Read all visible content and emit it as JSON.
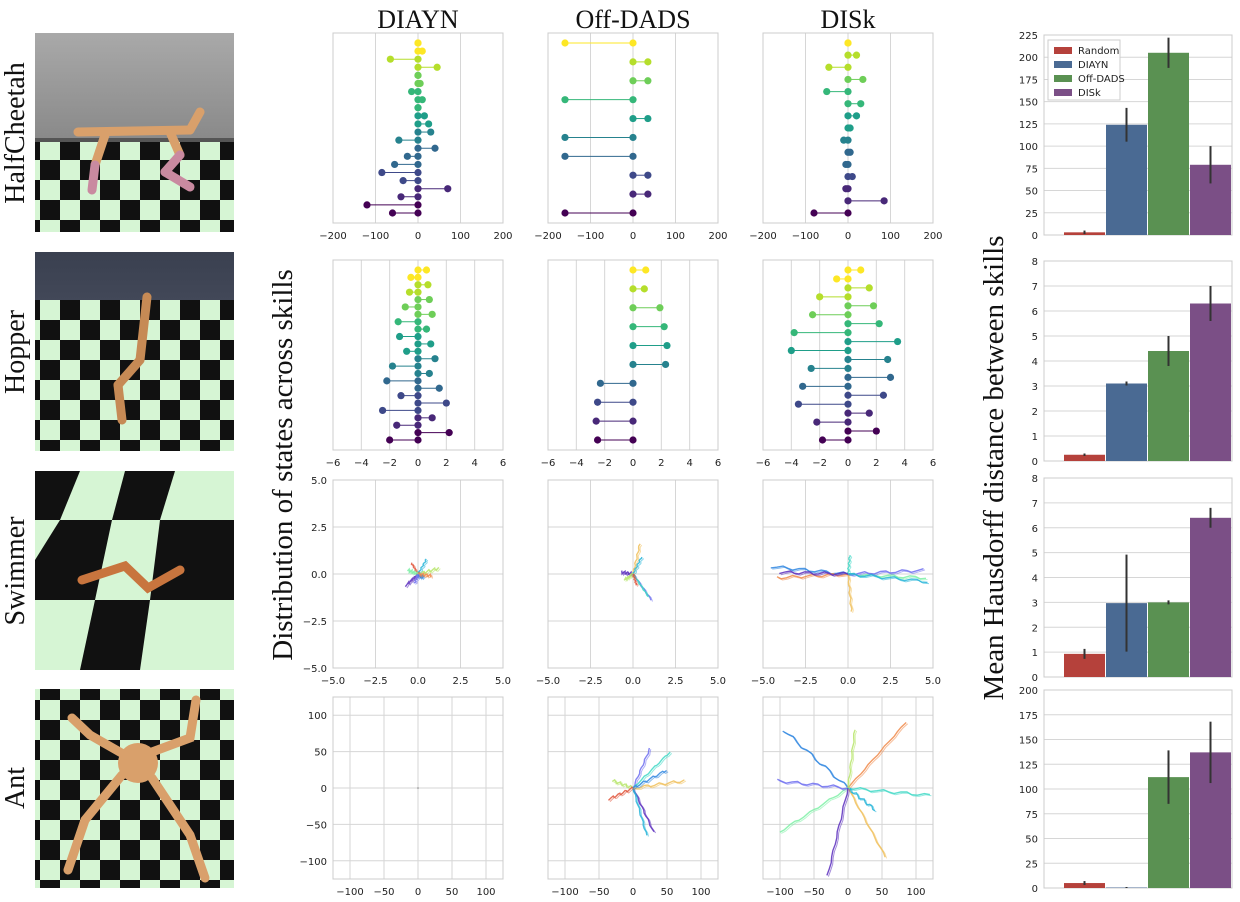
{
  "column_titles": [
    "DIAYN",
    "Off-DADS",
    "DISk"
  ],
  "row_titles": [
    "HalfCheetah",
    "Hopper",
    "Swimmer",
    "Ant"
  ],
  "ylabel_left": "Distribution of states across skills",
  "ylabel_right": "Mean Hausdorff distance between skills",
  "colors": {
    "Random": "#b5413b",
    "DIAYN": "#4a6a93",
    "Off-DADS": "#5a9152",
    "DISk": "#7b4f86",
    "errorbar": "#333333",
    "env_checker_light": "#d6f5d4",
    "env_checker_dark": "#111111",
    "env_body": "#d9a06b"
  },
  "chart_data": [
    {
      "type": "bar",
      "row": "HalfCheetah",
      "categories": [
        "Random",
        "DIAYN",
        "Off-DADS",
        "DISk"
      ],
      "values": [
        3,
        124,
        205,
        79
      ],
      "errors": [
        2,
        19,
        17,
        21
      ],
      "ylim": [
        0,
        225
      ],
      "yticks": [
        0,
        25,
        50,
        75,
        100,
        125,
        150,
        175,
        200,
        225
      ],
      "legend": [
        "Random",
        "DIAYN",
        "Off-DADS",
        "DISk"
      ],
      "legend_position": "top-left"
    },
    {
      "type": "bar",
      "row": "Hopper",
      "categories": [
        "Random",
        "DIAYN",
        "Off-DADS",
        "DISk"
      ],
      "values": [
        0.25,
        3.1,
        4.4,
        6.3
      ],
      "errors": [
        0.05,
        0.08,
        0.6,
        0.7
      ],
      "ylim": [
        0,
        8
      ],
      "yticks": [
        0,
        1,
        2,
        3,
        4,
        5,
        6,
        7,
        8
      ]
    },
    {
      "type": "bar",
      "row": "Swimmer",
      "categories": [
        "Random",
        "DIAYN",
        "Off-DADS",
        "DISk"
      ],
      "values": [
        0.93,
        2.97,
        3.0,
        6.4
      ],
      "errors": [
        0.2,
        1.95,
        0.08,
        0.4
      ],
      "ylim": [
        0,
        8
      ],
      "yticks": [
        0,
        1,
        2,
        3,
        4,
        5,
        6,
        7,
        8
      ]
    },
    {
      "type": "bar",
      "row": "Ant",
      "categories": [
        "Random",
        "DIAYN",
        "Off-DADS",
        "DISk"
      ],
      "values": [
        5,
        0.5,
        112,
        137
      ],
      "errors": [
        2,
        0.5,
        27,
        31
      ],
      "ylim": [
        0,
        200
      ],
      "yticks": [
        0,
        25,
        50,
        75,
        100,
        125,
        150,
        175,
        200
      ]
    },
    {
      "type": "scatter",
      "row": "HalfCheetah",
      "xlim": [
        -200,
        200
      ],
      "xticks": [
        -200,
        -100,
        0,
        100,
        200
      ],
      "panels": [
        {
          "method": "DIAYN",
          "offsets": [
            -60,
            -120,
            -40,
            70,
            -35,
            -85,
            -55,
            -25,
            40,
            -45,
            30,
            25,
            15,
            0,
            10,
            -15,
            5,
            0,
            45,
            -65,
            10,
            0
          ]
        },
        {
          "method": "Off-DADS",
          "offsets": [
            -160,
            35,
            35,
            -160,
            -160,
            35,
            -160,
            35,
            35,
            -160
          ]
        },
        {
          "method": "DISk",
          "offsets": [
            -80,
            85,
            -5,
            10,
            -5,
            5,
            -10,
            5,
            20,
            30,
            -50,
            35,
            -45,
            20,
            0
          ]
        }
      ]
    },
    {
      "type": "scatter",
      "row": "Hopper",
      "xlim": [
        -6,
        6
      ],
      "xticks": [
        -6,
        -4,
        -2,
        0,
        2,
        4,
        6
      ],
      "panels": [
        {
          "method": "DIAYN",
          "offsets": [
            -2.0,
            2.2,
            -1.5,
            1.0,
            -2.5,
            2.0,
            -1.2,
            1.5,
            -2.2,
            0.8,
            -1.8,
            1.2,
            -0.8,
            0.9,
            -1.3,
            0.6,
            -1.4,
            1.0,
            -0.9,
            0.8,
            -0.6,
            0.7,
            -0.5,
            0.6
          ]
        },
        {
          "method": "Off-DADS",
          "offsets": [
            -2.5,
            -2.6,
            -2.5,
            -2.3,
            2.3,
            2.4,
            2.2,
            1.9,
            0.8,
            0.9
          ]
        },
        {
          "method": "DISk",
          "offsets": [
            -1.8,
            2.0,
            -2.2,
            1.5,
            -3.5,
            2.5,
            -3.2,
            3.0,
            -2.6,
            2.8,
            -4.0,
            3.5,
            -3.8,
            2.2,
            -2.5,
            1.8,
            -2.0,
            1.5,
            -0.8,
            0.9
          ]
        }
      ]
    },
    {
      "type": "line",
      "row": "Swimmer",
      "xlim": [
        -5,
        5
      ],
      "ylim": [
        -5,
        5
      ],
      "xticks": [
        -5.0,
        -2.5,
        0.0,
        2.5,
        5.0
      ],
      "yticks": [
        5.0,
        2.5,
        0.0,
        -2.5,
        -5.0
      ],
      "panels": [
        {
          "method": "DIAYN",
          "endpoints": [
            [
              -0.7,
              -0.6
            ],
            [
              0.5,
              0.8
            ],
            [
              1.2,
              0.3
            ],
            [
              -0.4,
              0.6
            ],
            [
              0.3,
              -0.2
            ],
            [
              -0.6,
              0.2
            ],
            [
              0.8,
              -0.1
            ],
            [
              -0.2,
              -0.5
            ]
          ]
        },
        {
          "method": "Off-DADS",
          "endpoints": [
            [
              1.1,
              -1.4
            ],
            [
              0.9,
              -1.2
            ],
            [
              0.4,
              1.6
            ],
            [
              -0.7,
              0.1
            ],
            [
              0.5,
              0.9
            ],
            [
              -0.5,
              -0.3
            ],
            [
              0.2,
              -0.6
            ]
          ]
        },
        {
          "method": "DISk",
          "endpoints": [
            [
              -4.5,
              0.4
            ],
            [
              4.6,
              -0.2
            ],
            [
              -4.2,
              -0.2
            ],
            [
              4.4,
              0.2
            ],
            [
              0.1,
              1.0
            ],
            [
              0.2,
              -2.0
            ],
            [
              -4.0,
              0.1
            ],
            [
              4.7,
              -0.4
            ]
          ]
        }
      ]
    },
    {
      "type": "line",
      "row": "Ant",
      "xlim": [
        -125,
        125
      ],
      "ylim": [
        -125,
        125
      ],
      "xticks": [
        -100,
        -50,
        0,
        50,
        100
      ],
      "yticks": [
        100,
        50,
        0,
        -50,
        -100
      ],
      "panels": [
        {
          "method": "DIAYN",
          "endpoints": [
            [
              0,
              0
            ]
          ]
        },
        {
          "method": "Off-DADS",
          "endpoints": [
            [
              25,
              55
            ],
            [
              55,
              50
            ],
            [
              75,
              10
            ],
            [
              30,
              -60
            ],
            [
              20,
              -65
            ],
            [
              -30,
              10
            ],
            [
              -35,
              -15
            ],
            [
              50,
              25
            ]
          ]
        },
        {
          "method": "DISk",
          "endpoints": [
            [
              -95,
              80
            ],
            [
              -100,
              -60
            ],
            [
              85,
              90
            ],
            [
              -105,
              10
            ],
            [
              120,
              -10
            ],
            [
              55,
              -95
            ],
            [
              -30,
              -120
            ],
            [
              40,
              -30
            ],
            [
              10,
              80
            ]
          ]
        }
      ]
    }
  ]
}
